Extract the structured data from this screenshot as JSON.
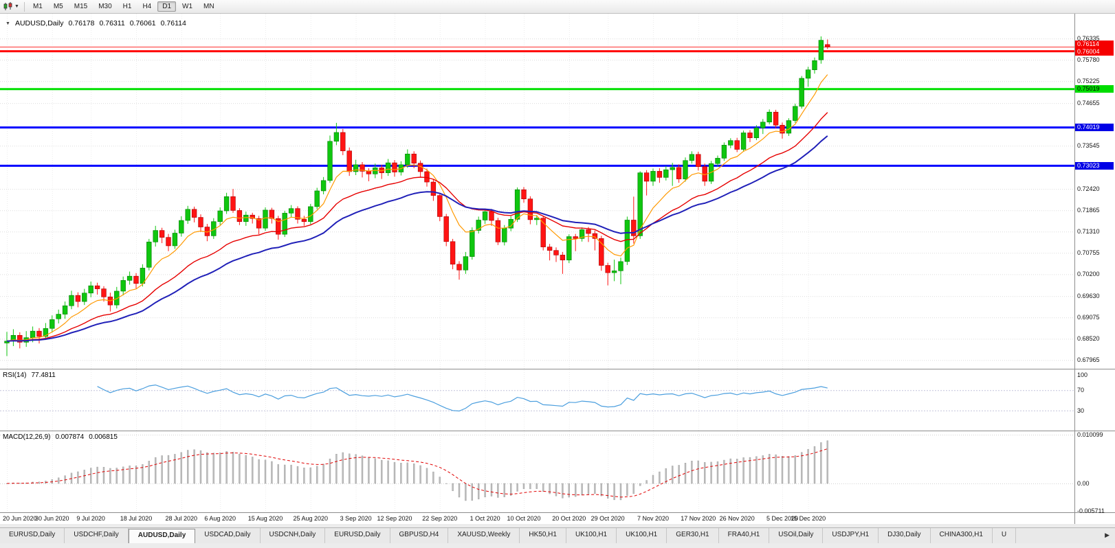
{
  "toolbar": {
    "timeframes": [
      "M1",
      "M5",
      "M15",
      "M30",
      "H1",
      "H4",
      "D1",
      "W1",
      "MN"
    ],
    "active": "D1"
  },
  "chart": {
    "symbol_label": "AUDUSD,Daily",
    "collapse_icon": "▼",
    "ohlc": {
      "open": "0.76178",
      "high": "0.76311",
      "low": "0.76061",
      "close": "0.76114"
    },
    "price_axis": {
      "min": 0.6774,
      "max": 0.7698,
      "ticks": [
        0.76335,
        0.7578,
        0.75225,
        0.74655,
        0.73545,
        0.7242,
        0.71865,
        0.7131,
        0.70755,
        0.702,
        0.6963,
        0.69075,
        0.6852,
        0.67965
      ]
    },
    "price_marker": {
      "level": 0.76114,
      "label": "0.76114",
      "badge_bg": "#f50000",
      "badge_fg": "#ffffff",
      "nudge": -4
    },
    "hlines": [
      {
        "level": 0.76004,
        "label": "0.76004",
        "color": "#ff0000",
        "badge_bg": "#f50000",
        "badge_fg": "#ffffff",
        "width": 3,
        "nudge": 1
      },
      {
        "level": 0.75019,
        "label": "0.75019",
        "color": "#00e000",
        "badge_bg": "#00dd00",
        "badge_fg": "#000000",
        "width": 3,
        "nudge": 0
      },
      {
        "level": 0.74019,
        "label": "0.74019",
        "color": "#0000ff",
        "badge_bg": "#0000e6",
        "badge_fg": "#ffffff",
        "width": 3,
        "nudge": 0
      },
      {
        "level": 0.73023,
        "label": "0.73023",
        "color": "#0000ff",
        "badge_bg": "#0000e6",
        "badge_fg": "#ffffff",
        "width": 3,
        "nudge": 0
      }
    ]
  },
  "chart_data": {
    "type": "candlestick",
    "symbol": "AUDUSD",
    "timeframe": "Daily",
    "up_color": "#0fc60f",
    "down_color": "#ff1414",
    "moving_averages": [
      {
        "name": "fast-ma",
        "period": 8,
        "color": "#ff9900",
        "width": 1.2
      },
      {
        "name": "medium-ma",
        "period": 21,
        "color": "#e60000",
        "width": 1.4
      },
      {
        "name": "slow-ma",
        "period": 34,
        "color": "#2020b8",
        "width": 2
      }
    ],
    "candles": [
      [
        0.6841,
        0.687,
        0.6807,
        0.6846
      ],
      [
        0.6846,
        0.6877,
        0.6833,
        0.6861
      ],
      [
        0.6861,
        0.6869,
        0.6827,
        0.6843
      ],
      [
        0.6843,
        0.6872,
        0.6831,
        0.6855
      ],
      [
        0.6855,
        0.6884,
        0.6843,
        0.6872
      ],
      [
        0.6872,
        0.688,
        0.684,
        0.6858
      ],
      [
        0.6858,
        0.6893,
        0.6849,
        0.6879
      ],
      [
        0.6879,
        0.6913,
        0.6868,
        0.6902
      ],
      [
        0.6904,
        0.6928,
        0.6892,
        0.6916
      ],
      [
        0.6916,
        0.6949,
        0.6904,
        0.6938
      ],
      [
        0.6938,
        0.6977,
        0.6929,
        0.6965
      ],
      [
        0.6965,
        0.6973,
        0.6934,
        0.6949
      ],
      [
        0.6949,
        0.6982,
        0.694,
        0.6971
      ],
      [
        0.6971,
        0.7001,
        0.696,
        0.699
      ],
      [
        0.699,
        0.6998,
        0.6967,
        0.6982
      ],
      [
        0.6982,
        0.6989,
        0.6949,
        0.6961
      ],
      [
        0.6961,
        0.6972,
        0.6923,
        0.694
      ],
      [
        0.694,
        0.6987,
        0.6931,
        0.6976
      ],
      [
        0.6976,
        0.7014,
        0.6965,
        0.7004
      ],
      [
        0.7004,
        0.7027,
        0.6993,
        0.7015
      ],
      [
        0.7015,
        0.7023,
        0.6983,
        0.6996
      ],
      [
        0.6996,
        0.7046,
        0.6988,
        0.7036
      ],
      [
        0.7038,
        0.7112,
        0.703,
        0.7104
      ],
      [
        0.7104,
        0.7146,
        0.7092,
        0.7134
      ],
      [
        0.7134,
        0.7141,
        0.7101,
        0.7116
      ],
      [
        0.7116,
        0.7125,
        0.708,
        0.7094
      ],
      [
        0.7094,
        0.7136,
        0.7086,
        0.7127
      ],
      [
        0.7127,
        0.7171,
        0.7118,
        0.716
      ],
      [
        0.716,
        0.7198,
        0.7151,
        0.7189
      ],
      [
        0.7189,
        0.7196,
        0.7155,
        0.7168
      ],
      [
        0.7168,
        0.7176,
        0.713,
        0.7143
      ],
      [
        0.7143,
        0.7151,
        0.7106,
        0.712
      ],
      [
        0.712,
        0.7166,
        0.7112,
        0.7157
      ],
      [
        0.7157,
        0.7194,
        0.7148,
        0.7185
      ],
      [
        0.7185,
        0.7232,
        0.7177,
        0.7222
      ],
      [
        0.7222,
        0.7242,
        0.718,
        0.7186
      ],
      [
        0.7186,
        0.7192,
        0.7148,
        0.7157
      ],
      [
        0.7157,
        0.7183,
        0.7146,
        0.7174
      ],
      [
        0.7174,
        0.718,
        0.7152,
        0.7165
      ],
      [
        0.7165,
        0.7172,
        0.7124,
        0.714
      ],
      [
        0.714,
        0.7194,
        0.7133,
        0.7187
      ],
      [
        0.7187,
        0.7193,
        0.7152,
        0.7165
      ],
      [
        0.7165,
        0.7172,
        0.711,
        0.7124
      ],
      [
        0.7124,
        0.7185,
        0.7117,
        0.7179
      ],
      [
        0.7179,
        0.72,
        0.7168,
        0.7191
      ],
      [
        0.7191,
        0.7197,
        0.7152,
        0.7163
      ],
      [
        0.7163,
        0.7172,
        0.7146,
        0.7157
      ],
      [
        0.7157,
        0.7203,
        0.715,
        0.7196
      ],
      [
        0.7196,
        0.7245,
        0.7189,
        0.7237
      ],
      [
        0.7237,
        0.7273,
        0.7228,
        0.7264
      ],
      [
        0.7264,
        0.7381,
        0.7258,
        0.7366
      ],
      [
        0.7366,
        0.7414,
        0.7356,
        0.7389
      ],
      [
        0.7389,
        0.7398,
        0.733,
        0.7341
      ],
      [
        0.7341,
        0.735,
        0.7276,
        0.7287
      ],
      [
        0.7287,
        0.7318,
        0.7278,
        0.7305
      ],
      [
        0.7305,
        0.7312,
        0.7272,
        0.7288
      ],
      [
        0.7288,
        0.7296,
        0.7262,
        0.7281
      ],
      [
        0.7281,
        0.7308,
        0.727,
        0.7297
      ],
      [
        0.7297,
        0.7305,
        0.7268,
        0.7284
      ],
      [
        0.7284,
        0.732,
        0.7276,
        0.731
      ],
      [
        0.731,
        0.7317,
        0.7274,
        0.7286
      ],
      [
        0.7286,
        0.7314,
        0.7277,
        0.7305
      ],
      [
        0.7305,
        0.7345,
        0.7297,
        0.7333
      ],
      [
        0.7333,
        0.734,
        0.7296,
        0.7309
      ],
      [
        0.7309,
        0.7316,
        0.7272,
        0.7287
      ],
      [
        0.7287,
        0.7295,
        0.7248,
        0.726
      ],
      [
        0.726,
        0.7268,
        0.7211,
        0.7225
      ],
      [
        0.7225,
        0.7232,
        0.7158,
        0.717
      ],
      [
        0.717,
        0.7177,
        0.7093,
        0.7105
      ],
      [
        0.7105,
        0.7112,
        0.7033,
        0.7046
      ],
      [
        0.7046,
        0.7054,
        0.7006,
        0.7031
      ],
      [
        0.7031,
        0.7078,
        0.7021,
        0.7066
      ],
      [
        0.7066,
        0.7142,
        0.7058,
        0.7134
      ],
      [
        0.7134,
        0.717,
        0.7126,
        0.7161
      ],
      [
        0.7161,
        0.7191,
        0.7151,
        0.7183
      ],
      [
        0.7183,
        0.719,
        0.7146,
        0.716
      ],
      [
        0.716,
        0.7167,
        0.7096,
        0.7104
      ],
      [
        0.7104,
        0.7148,
        0.7095,
        0.714
      ],
      [
        0.714,
        0.7171,
        0.7132,
        0.7163
      ],
      [
        0.7163,
        0.7246,
        0.7156,
        0.724
      ],
      [
        0.724,
        0.7247,
        0.7206,
        0.7216
      ],
      [
        0.7216,
        0.7223,
        0.715,
        0.7162
      ],
      [
        0.7162,
        0.7174,
        0.7148,
        0.7166
      ],
      [
        0.7166,
        0.7172,
        0.7082,
        0.7091
      ],
      [
        0.7091,
        0.7099,
        0.7056,
        0.7082
      ],
      [
        0.7082,
        0.709,
        0.7052,
        0.707
      ],
      [
        0.707,
        0.7078,
        0.7021,
        0.7057
      ],
      [
        0.7057,
        0.7124,
        0.7049,
        0.7118
      ],
      [
        0.7118,
        0.7125,
        0.708,
        0.7113
      ],
      [
        0.7113,
        0.7142,
        0.7105,
        0.7136
      ],
      [
        0.7136,
        0.7143,
        0.7104,
        0.7126
      ],
      [
        0.7126,
        0.7134,
        0.7082,
        0.7113
      ],
      [
        0.7113,
        0.712,
        0.7029,
        0.7043
      ],
      [
        0.7043,
        0.705,
        0.6991,
        0.7024
      ],
      [
        0.7024,
        0.7058,
        0.7002,
        0.7029
      ],
      [
        0.7029,
        0.7063,
        0.6994,
        0.7053
      ],
      [
        0.7053,
        0.717,
        0.7044,
        0.7161
      ],
      [
        0.7161,
        0.7222,
        0.71,
        0.712
      ],
      [
        0.712,
        0.7288,
        0.7112,
        0.7284
      ],
      [
        0.7284,
        0.7291,
        0.7225,
        0.7262
      ],
      [
        0.7262,
        0.7295,
        0.725,
        0.7288
      ],
      [
        0.7288,
        0.7296,
        0.7258,
        0.7272
      ],
      [
        0.7272,
        0.7302,
        0.7264,
        0.7292
      ],
      [
        0.7292,
        0.731,
        0.725,
        0.7298
      ],
      [
        0.7298,
        0.7306,
        0.7258,
        0.7268
      ],
      [
        0.7268,
        0.7324,
        0.7261,
        0.7316
      ],
      [
        0.7316,
        0.734,
        0.7308,
        0.7332
      ],
      [
        0.7332,
        0.7339,
        0.729,
        0.73
      ],
      [
        0.73,
        0.7308,
        0.725,
        0.7262
      ],
      [
        0.7262,
        0.7315,
        0.7255,
        0.7308
      ],
      [
        0.7308,
        0.7329,
        0.73,
        0.7322
      ],
      [
        0.7322,
        0.7363,
        0.7315,
        0.7356
      ],
      [
        0.7356,
        0.7374,
        0.7348,
        0.7368
      ],
      [
        0.7368,
        0.7375,
        0.7338,
        0.7345
      ],
      [
        0.7345,
        0.7394,
        0.7339,
        0.7388
      ],
      [
        0.7388,
        0.7395,
        0.7364,
        0.7375
      ],
      [
        0.7375,
        0.7408,
        0.7369,
        0.7401
      ],
      [
        0.7401,
        0.7424,
        0.7385,
        0.7416
      ],
      [
        0.7416,
        0.7449,
        0.741,
        0.7442
      ],
      [
        0.7442,
        0.7448,
        0.74,
        0.7408
      ],
      [
        0.7408,
        0.7415,
        0.7373,
        0.7387
      ],
      [
        0.7387,
        0.7426,
        0.738,
        0.742
      ],
      [
        0.742,
        0.7464,
        0.7414,
        0.7457
      ],
      [
        0.7457,
        0.7536,
        0.7451,
        0.753
      ],
      [
        0.753,
        0.756,
        0.7508,
        0.7552
      ],
      [
        0.7552,
        0.7584,
        0.7542,
        0.7576
      ],
      [
        0.7578,
        0.7639,
        0.7568,
        0.7629
      ],
      [
        0.76178,
        0.76311,
        0.76061,
        0.76114
      ]
    ]
  },
  "rsi": {
    "label": "RSI(14)",
    "value": "77.4811",
    "period": 14,
    "levels": [
      70,
      30
    ],
    "axis": [
      100,
      70,
      30
    ],
    "color": "#4a9ede"
  },
  "macd": {
    "label": "MACD(12,26,9)",
    "value_main": "0.007874",
    "value_signal": "0.006815",
    "fast": 12,
    "slow": 26,
    "signal": 9,
    "hist_color": "#bdbdbd",
    "signal_color": "#e00000",
    "axis": [
      {
        "text": "0.010099",
        "value": 0.010099
      },
      {
        "text": "0.00",
        "value": 0
      },
      {
        "text": "-0.005711",
        "value": -0.005711
      }
    ]
  },
  "date_axis": {
    "labels": [
      {
        "text": "20 Jun 2020",
        "bar": 0
      },
      {
        "text": "30 Jun 2020",
        "bar": 7
      },
      {
        "text": "9 Jul 2020",
        "bar": 13
      },
      {
        "text": "18 Jul 2020",
        "bar": 20
      },
      {
        "text": "28 Jul 2020",
        "bar": 27
      },
      {
        "text": "6 Aug 2020",
        "bar": 33
      },
      {
        "text": "15 Aug 2020",
        "bar": 40
      },
      {
        "text": "25 Aug 2020",
        "bar": 47
      },
      {
        "text": "3 Sep 2020",
        "bar": 54
      },
      {
        "text": "12 Sep 2020",
        "bar": 60
      },
      {
        "text": "22 Sep 2020",
        "bar": 67
      },
      {
        "text": "1 Oct 2020",
        "bar": 74
      },
      {
        "text": "10 Oct 2020",
        "bar": 80
      },
      {
        "text": "20 Oct 2020",
        "bar": 87
      },
      {
        "text": "29 Oct 2020",
        "bar": 93
      },
      {
        "text": "7 Nov 2020",
        "bar": 100
      },
      {
        "text": "17 Nov 2020",
        "bar": 107
      },
      {
        "text": "26 Nov 2020",
        "bar": 113
      },
      {
        "text": "5 Dec 2020",
        "bar": 120
      },
      {
        "text": "15 Dec 2020",
        "bar": 124
      }
    ]
  },
  "tabs": {
    "items": [
      "EURUSD,Daily",
      "USDCHF,Daily",
      "AUDUSD,Daily",
      "USDCAD,Daily",
      "USDCNH,Daily",
      "EURUSD,Daily",
      "GBPUSD,H4",
      "XAUUSD,Weekly",
      "HK50,H1",
      "UK100,H1",
      "UK100,H1",
      "GER30,H1",
      "FRA40,H1",
      "USOil,Daily",
      "USDJPY,H1",
      "DJ30,Daily",
      "CHINA300,H1",
      "U"
    ],
    "active_index": 2,
    "scroll_right": "▶"
  }
}
